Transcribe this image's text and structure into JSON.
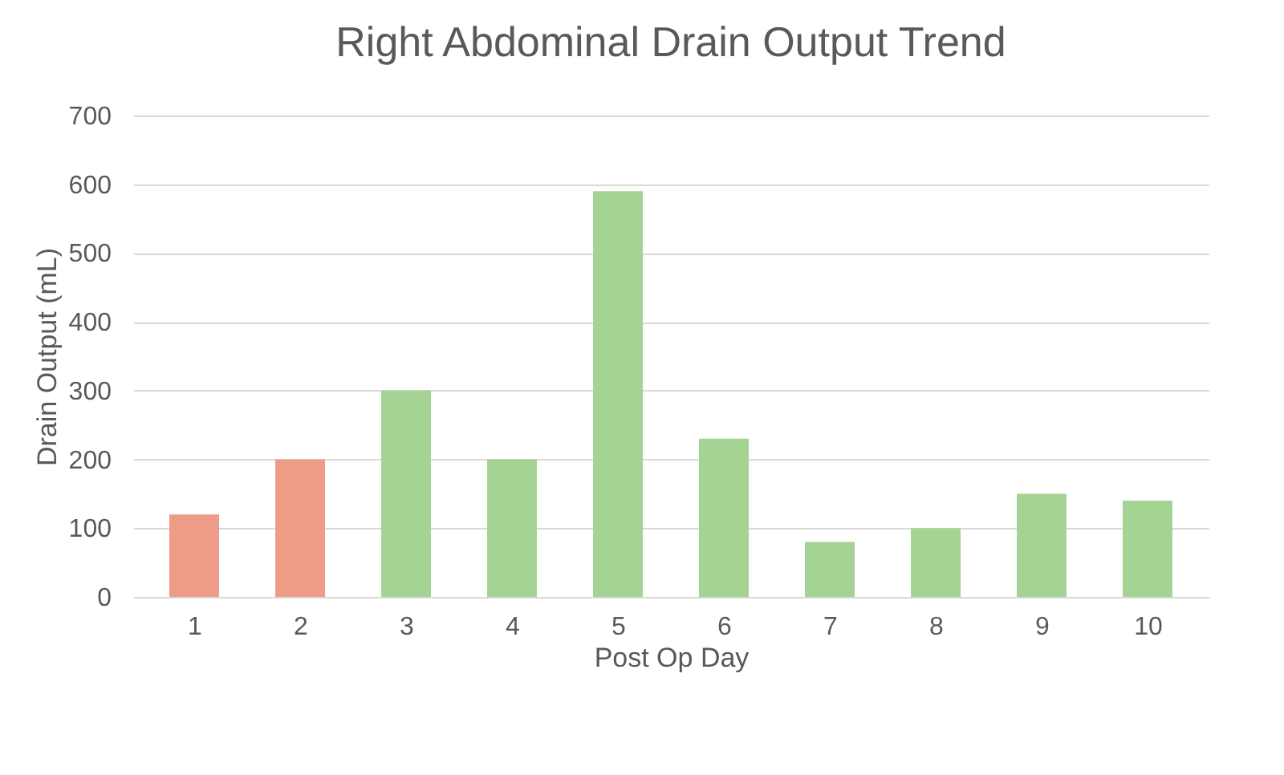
{
  "chart_data": {
    "type": "bar",
    "title": "Right Abdominal Drain Output Trend",
    "xlabel": "Post Op Day",
    "ylabel": "Drain Output (mL)",
    "categories": [
      "1",
      "2",
      "3",
      "4",
      "5",
      "6",
      "7",
      "8",
      "9",
      "10"
    ],
    "values": [
      120,
      200,
      300,
      200,
      590,
      230,
      80,
      100,
      150,
      140
    ],
    "colors": [
      "#ec9c87",
      "#ec9c87",
      "#a5d394",
      "#a5d394",
      "#a5d394",
      "#a5d394",
      "#a5d394",
      "#a5d394",
      "#a5d394",
      "#a5d394"
    ],
    "ylim": [
      0,
      700
    ],
    "yticks": [
      0,
      100,
      200,
      300,
      400,
      500,
      600,
      700
    ],
    "grid": "y"
  }
}
